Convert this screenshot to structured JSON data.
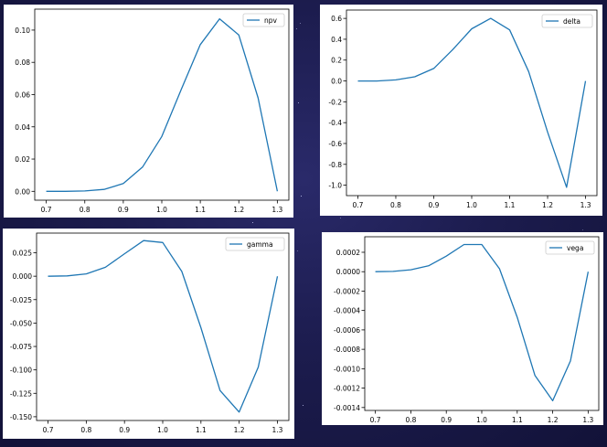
{
  "chart_data": [
    {
      "type": "line",
      "x": [
        0.7,
        0.75,
        0.8,
        0.85,
        0.9,
        0.95,
        1.0,
        1.05,
        1.1,
        1.15,
        1.2,
        1.25,
        1.3
      ],
      "series": [
        {
          "name": "npv",
          "values": [
            0.0,
            0.0,
            0.0002,
            0.0012,
            0.0048,
            0.015,
            0.034,
            0.063,
            0.091,
            0.107,
            0.097,
            0.058,
            0.0
          ]
        }
      ],
      "yticks": [
        0.0,
        0.02,
        0.04,
        0.06,
        0.08,
        0.1
      ],
      "ytick_labels": [
        "0.00",
        "0.02",
        "0.04",
        "0.06",
        "0.08",
        "0.10"
      ],
      "ylim": [
        -0.0055,
        0.113
      ],
      "xticks": [
        0.7,
        0.8,
        0.9,
        1.0,
        1.1,
        1.2,
        1.3
      ],
      "xtick_labels": [
        "0.7",
        "0.8",
        "0.9",
        "1.0",
        "1.1",
        "1.2",
        "1.3"
      ],
      "xlim": [
        0.67,
        1.33
      ],
      "legend": "top-right",
      "color": "#1f77b4"
    },
    {
      "type": "line",
      "x": [
        0.7,
        0.75,
        0.8,
        0.85,
        0.9,
        0.95,
        1.0,
        1.05,
        1.1,
        1.15,
        1.2,
        1.25,
        1.3
      ],
      "series": [
        {
          "name": "delta",
          "values": [
            0.0,
            0.0,
            0.01,
            0.04,
            0.12,
            0.3,
            0.5,
            0.6,
            0.49,
            0.09,
            -0.49,
            -1.02,
            0.0
          ]
        }
      ],
      "yticks": [
        -1.0,
        -0.8,
        -0.6,
        -0.4,
        -0.2,
        0.0,
        0.2,
        0.4,
        0.6
      ],
      "ytick_labels": [
        "-1.0",
        "-0.8",
        "-0.6",
        "-0.4",
        "-0.2",
        "0.0",
        "0.2",
        "0.4",
        "0.6"
      ],
      "ylim": [
        -1.1,
        0.68
      ],
      "xticks": [
        0.7,
        0.8,
        0.9,
        1.0,
        1.1,
        1.2,
        1.3
      ],
      "xtick_labels": [
        "0.7",
        "0.8",
        "0.9",
        "1.0",
        "1.1",
        "1.2",
        "1.3"
      ],
      "xlim": [
        0.67,
        1.33
      ],
      "legend": "top-right",
      "color": "#1f77b4"
    },
    {
      "type": "line",
      "x": [
        0.7,
        0.75,
        0.8,
        0.85,
        0.9,
        0.95,
        1.0,
        1.05,
        1.1,
        1.15,
        1.2,
        1.25,
        1.3
      ],
      "series": [
        {
          "name": "gamma",
          "values": [
            0.0,
            0.0003,
            0.0025,
            0.0095,
            0.024,
            0.038,
            0.036,
            0.005,
            -0.055,
            -0.122,
            -0.145,
            -0.097,
            0.0
          ]
        }
      ],
      "yticks": [
        -0.15,
        -0.125,
        -0.1,
        -0.075,
        -0.05,
        -0.025,
        0.0,
        0.025
      ],
      "ytick_labels": [
        "-0.150",
        "-0.125",
        "-0.100",
        "-0.075",
        "-0.050",
        "-0.025",
        "0.000",
        "0.025"
      ],
      "ylim": [
        -0.154,
        0.046
      ],
      "xticks": [
        0.7,
        0.8,
        0.9,
        1.0,
        1.1,
        1.2,
        1.3
      ],
      "xtick_labels": [
        "0.7",
        "0.8",
        "0.9",
        "1.0",
        "1.1",
        "1.2",
        "1.3"
      ],
      "xlim": [
        0.67,
        1.33
      ],
      "legend": "top-right",
      "color": "#1f77b4"
    },
    {
      "type": "line",
      "x": [
        0.7,
        0.75,
        0.8,
        0.85,
        0.9,
        0.95,
        1.0,
        1.05,
        1.1,
        1.15,
        1.2,
        1.25,
        1.3
      ],
      "series": [
        {
          "name": "vega",
          "values": [
            0.0,
            3e-06,
            2e-05,
            6e-05,
            0.00016,
            0.00028,
            0.00028,
            3e-05,
            -0.00047,
            -0.00107,
            -0.00133,
            -0.00092,
            0.0
          ]
        }
      ],
      "yticks": [
        -0.0014,
        -0.0012,
        -0.001,
        -0.0008,
        -0.0006,
        -0.0004,
        -0.0002,
        0.0,
        0.0002
      ],
      "ytick_labels": [
        "-0.0014",
        "-0.0012",
        "-0.0010",
        "-0.0008",
        "-0.0006",
        "-0.0004",
        "-0.0002",
        "0.0000",
        "0.0002"
      ],
      "ylim": [
        -0.00143,
        0.00036
      ],
      "xticks": [
        0.7,
        0.8,
        0.9,
        1.0,
        1.1,
        1.2,
        1.3
      ],
      "xtick_labels": [
        "0.7",
        "0.8",
        "0.9",
        "1.0",
        "1.1",
        "1.2",
        "1.3"
      ],
      "xlim": [
        0.67,
        1.33
      ],
      "legend": "top-right",
      "color": "#1f77b4"
    }
  ]
}
